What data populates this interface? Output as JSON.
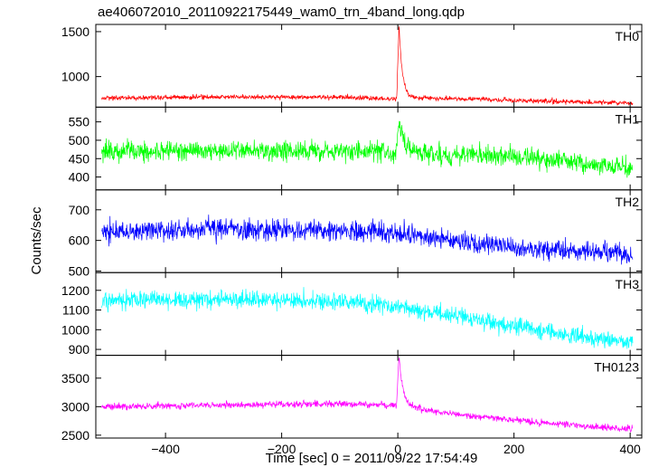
{
  "title": "ae406072010_20110922175449_wam0_trn_4band_long.qdp",
  "chart_data": {
    "type": "line",
    "title": "ae406072010_20110922175449_wam0_trn_4band_long.qdp",
    "xlabel": "Time [sec] 0 = 2011/09/22 17:54:49",
    "ylabel": "Counts/sec",
    "xlim": [
      -520,
      420
    ],
    "xticks": [
      -400,
      -200,
      0,
      200,
      400
    ],
    "grid": false,
    "legend": "none",
    "panels": [
      {
        "name": "TH0",
        "color": "#ff0000",
        "ylim": [
          660,
          1580
        ],
        "yticks": [
          1000,
          1500
        ],
        "baseline": [
          [
            -510,
            760
          ],
          [
            -300,
            775
          ],
          [
            -100,
            770
          ],
          [
            -5,
            750
          ],
          [
            60,
            760
          ],
          [
            200,
            735
          ],
          [
            400,
            705
          ]
        ],
        "noise": 22,
        "peak": {
          "t": 2,
          "amp": 820,
          "decay": 6
        }
      },
      {
        "name": "TH1",
        "color": "#00ff00",
        "ylim": [
          365,
          590
        ],
        "yticks": [
          400,
          450,
          500,
          550
        ],
        "baseline": [
          [
            -510,
            470
          ],
          [
            -200,
            472
          ],
          [
            0,
            468
          ],
          [
            200,
            455
          ],
          [
            400,
            425
          ]
        ],
        "noise": 22,
        "peak": {
          "t": 2,
          "amp": 90,
          "decay": 8
        }
      },
      {
        "name": "TH2",
        "color": "#0000ff",
        "ylim": [
          495,
          765
        ],
        "yticks": [
          500,
          600,
          700
        ],
        "baseline": [
          [
            -510,
            628
          ],
          [
            -300,
            640
          ],
          [
            -100,
            632
          ],
          [
            0,
            625
          ],
          [
            200,
            575
          ],
          [
            400,
            555
          ]
        ],
        "noise": 28,
        "peak": {
          "t": 0,
          "amp": 0,
          "decay": 5
        }
      },
      {
        "name": "TH3",
        "color": "#00ffff",
        "ylim": [
          870,
          1290
        ],
        "yticks": [
          900,
          1000,
          1100,
          1200
        ],
        "baseline": [
          [
            -510,
            1150
          ],
          [
            -300,
            1155
          ],
          [
            -100,
            1145
          ],
          [
            0,
            1115
          ],
          [
            100,
            1070
          ],
          [
            200,
            1020
          ],
          [
            300,
            970
          ],
          [
            400,
            935
          ]
        ],
        "noise": 36,
        "peak": {
          "t": 0,
          "amp": 0,
          "decay": 5
        }
      },
      {
        "name": "TH0123",
        "color": "#ff00ff",
        "ylim": [
          2450,
          3900
        ],
        "yticks": [
          2500,
          3000,
          3500
        ],
        "baseline": [
          [
            -510,
            3000
          ],
          [
            -300,
            3030
          ],
          [
            -100,
            3050
          ],
          [
            0,
            3020
          ],
          [
            80,
            2890
          ],
          [
            200,
            2760
          ],
          [
            400,
            2600
          ]
        ],
        "noise": 48,
        "peak": {
          "t": 2,
          "amp": 880,
          "decay": 7
        }
      }
    ]
  }
}
